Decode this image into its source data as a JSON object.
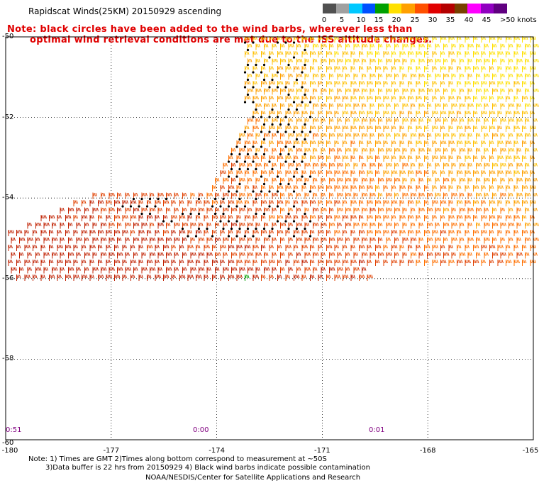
{
  "title": "Rapidscat Winds(25KM) 20150929 ascending",
  "note_line1": "Note: black circles have been added to the wind barbs, wherever less than",
  "note_line2": "optimal wind retrieval conditions are met due to the ISS altitude changes.",
  "color_scale": {
    "labels": [
      "0",
      "5",
      "10",
      "15",
      "20",
      "25",
      "30",
      "35",
      "40",
      "45",
      ">50 knots"
    ],
    "colors": [
      "#505050",
      "#a0a0a0",
      "#00c8ff",
      "#0050ff",
      "#00a000",
      "#ffe000",
      "#ffa000",
      "#ff5000",
      "#e00000",
      "#b40000",
      "#784000",
      "#ff00ff",
      "#9000c0",
      "#600080"
    ]
  },
  "lat_labels": [
    "-50",
    "-52",
    "-54",
    "-56",
    "-58",
    "-60"
  ],
  "lon_labels": [
    "-180",
    "-177",
    "-174",
    "-171",
    "-168",
    "-165"
  ],
  "time_labels": [
    "0:51",
    "0:00",
    "0:01"
  ],
  "footer": {
    "line1": "Note: 1) Times are GMT 2)Times along bottom correspond to measurement at ~50S",
    "line2": "3)Data buffer is 22 hrs from 20150929 4) Black wind barbs indicate possible contamination",
    "line3": "NOAA/NESDIS/Center for Satellite Applications and Research"
  },
  "map": {
    "lat_range": [
      -60,
      -50
    ],
    "lon_range": [
      -180,
      -165
    ],
    "grid": true,
    "barb_color_gradient": [
      "#ffe000",
      "#ffc000",
      "#ffa000",
      "#ff7000",
      "#e04000",
      "#c02000"
    ],
    "flagged_marker": "black-circle"
  }
}
